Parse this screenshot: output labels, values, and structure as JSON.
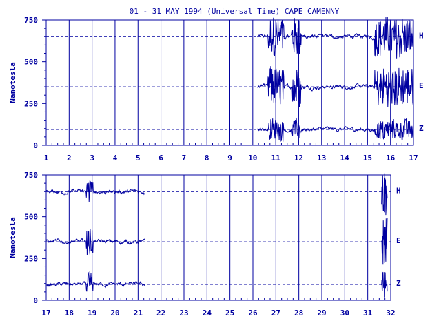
{
  "chart_data": {
    "type": "line",
    "title": "01 - 31 MAY 1994 (Universal Time) CAPE CAMENNY",
    "ylabel": "Nanotesla",
    "colors": {
      "line": "#0000a0",
      "background": "#ffffff"
    },
    "grid": "vertical lines at day boundaries; dashed horizontal baselines per component",
    "panels": [
      {
        "xlim": [
          1,
          17
        ],
        "ylim": [
          0,
          750
        ],
        "x_tick_labels": [
          "1",
          "2",
          "3",
          "4",
          "5",
          "6",
          "7",
          "8",
          "9",
          "10",
          "11",
          "12",
          "13",
          "14",
          "15",
          "16",
          "17"
        ],
        "y_tick_labels": [
          "0",
          "250",
          "500",
          "750"
        ],
        "series": [
          {
            "name": "H",
            "baseline": 650,
            "data_range": [
              10.2,
              17
            ]
          },
          {
            "name": "E",
            "baseline": 350,
            "data_range": [
              10.2,
              17
            ]
          },
          {
            "name": "Z",
            "baseline": 95,
            "data_range": [
              10.2,
              17
            ]
          }
        ]
      },
      {
        "xlim": [
          17,
          32
        ],
        "ylim": [
          0,
          750
        ],
        "x_tick_labels": [
          "17",
          "18",
          "19",
          "20",
          "21",
          "22",
          "23",
          "24",
          "25",
          "26",
          "27",
          "28",
          "29",
          "30",
          "31",
          "32"
        ],
        "y_tick_labels": [
          "0",
          "250",
          "500",
          "750"
        ],
        "series": [
          {
            "name": "H",
            "baseline": 650,
            "data_range": [
              17,
              21.3
            ]
          },
          {
            "name": "E",
            "baseline": 350,
            "data_range": [
              17,
              21.3
            ]
          },
          {
            "name": "Z",
            "baseline": 95,
            "data_range": [
              17,
              21.3
            ]
          }
        ]
      }
    ]
  }
}
